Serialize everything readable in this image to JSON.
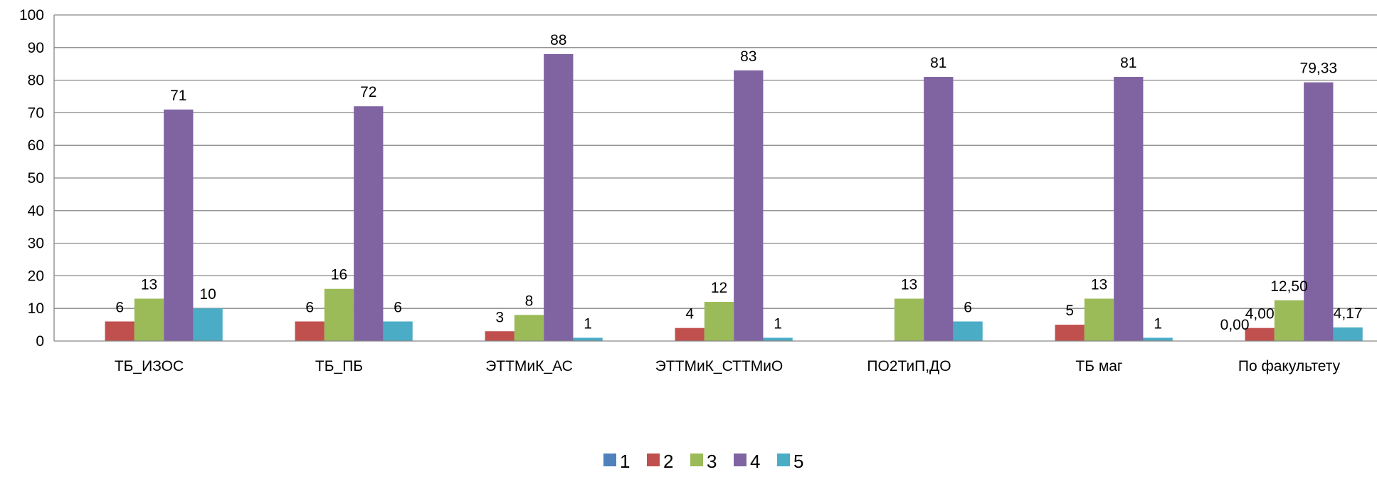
{
  "chart_data": {
    "type": "bar",
    "title": "",
    "xlabel": "",
    "ylabel": "",
    "ylim": [
      0,
      100
    ],
    "yticks": [
      0,
      10,
      20,
      30,
      40,
      50,
      60,
      70,
      80,
      90,
      100
    ],
    "grid": true,
    "legend_position": "bottom",
    "categories": [
      "ТБ_ИЗОС",
      "ТБ_ПБ",
      "ЭТТМиК_АС",
      "ЭТТМиК_СТТМиО",
      "ПО2ТиП,ДО",
      "ТБ маг",
      "По факультету"
    ],
    "series": [
      {
        "name": "1",
        "color": "#4F81BD",
        "values": [
          0,
          0,
          0,
          0,
          0,
          0,
          0
        ],
        "labels": [
          "",
          "",
          "",
          "",
          "",
          "",
          "0,00"
        ]
      },
      {
        "name": "2",
        "color": "#C0504D",
        "values": [
          6,
          6,
          3,
          4,
          0,
          5,
          4
        ],
        "labels": [
          "6",
          "6",
          "3",
          "4",
          "",
          "5",
          "4,00"
        ]
      },
      {
        "name": "3",
        "color": "#9BBB59",
        "values": [
          13,
          16,
          8,
          12,
          13,
          13,
          12.5
        ],
        "labels": [
          "13",
          "16",
          "8",
          "12",
          "13",
          "13",
          "12,50"
        ]
      },
      {
        "name": "4",
        "color": "#8064A2",
        "values": [
          71,
          72,
          88,
          83,
          81,
          81,
          79.33
        ],
        "labels": [
          "71",
          "72",
          "88",
          "83",
          "81",
          "81",
          "79,33"
        ]
      },
      {
        "name": "5",
        "color": "#4BACC6",
        "values": [
          10,
          6,
          1,
          1,
          6,
          1,
          4.17
        ],
        "labels": [
          "10",
          "6",
          "1",
          "1",
          "6",
          "1",
          "4,17"
        ]
      }
    ]
  }
}
